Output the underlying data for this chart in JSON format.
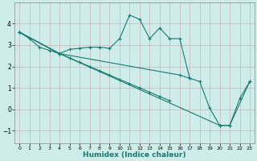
{
  "xlabel": "Humidex (Indice chaleur)",
  "bg_color": "#cdecea",
  "line_color": "#1a7a6e",
  "xlim": [
    -0.5,
    23.5
  ],
  "ylim": [
    -1.6,
    5.0
  ],
  "xticks": [
    0,
    1,
    2,
    3,
    4,
    5,
    6,
    7,
    8,
    9,
    10,
    11,
    12,
    13,
    14,
    15,
    16,
    17,
    18,
    19,
    20,
    21,
    22,
    23
  ],
  "yticks": [
    -1,
    0,
    1,
    2,
    3,
    4
  ],
  "line1_x": [
    0,
    1,
    2,
    3,
    4,
    5,
    6,
    7,
    8,
    9,
    10,
    11,
    12,
    13,
    14,
    15,
    16,
    17
  ],
  "line1_y": [
    3.6,
    3.3,
    2.9,
    2.75,
    2.6,
    2.8,
    2.85,
    2.9,
    2.9,
    2.85,
    3.3,
    4.4,
    4.2,
    3.3,
    3.8,
    3.3,
    3.3,
    1.45
  ],
  "line2_x": [
    0,
    4,
    16,
    17,
    18,
    19,
    20,
    21,
    22,
    23
  ],
  "line2_y": [
    3.6,
    2.6,
    1.6,
    1.45,
    1.3,
    0.05,
    -0.75,
    -0.75,
    0.5,
    1.3
  ],
  "line3_x": [
    0,
    4,
    20,
    21,
    23
  ],
  "line3_y": [
    3.6,
    2.6,
    -0.75,
    -0.75,
    1.3
  ],
  "line4_x": [
    0,
    4,
    5,
    6,
    7,
    8,
    9,
    10,
    11,
    12,
    13,
    14,
    15
  ],
  "line4_y": [
    3.6,
    2.6,
    2.4,
    2.2,
    2.0,
    1.8,
    1.6,
    1.4,
    1.2,
    1.0,
    0.8,
    0.6,
    0.4
  ]
}
